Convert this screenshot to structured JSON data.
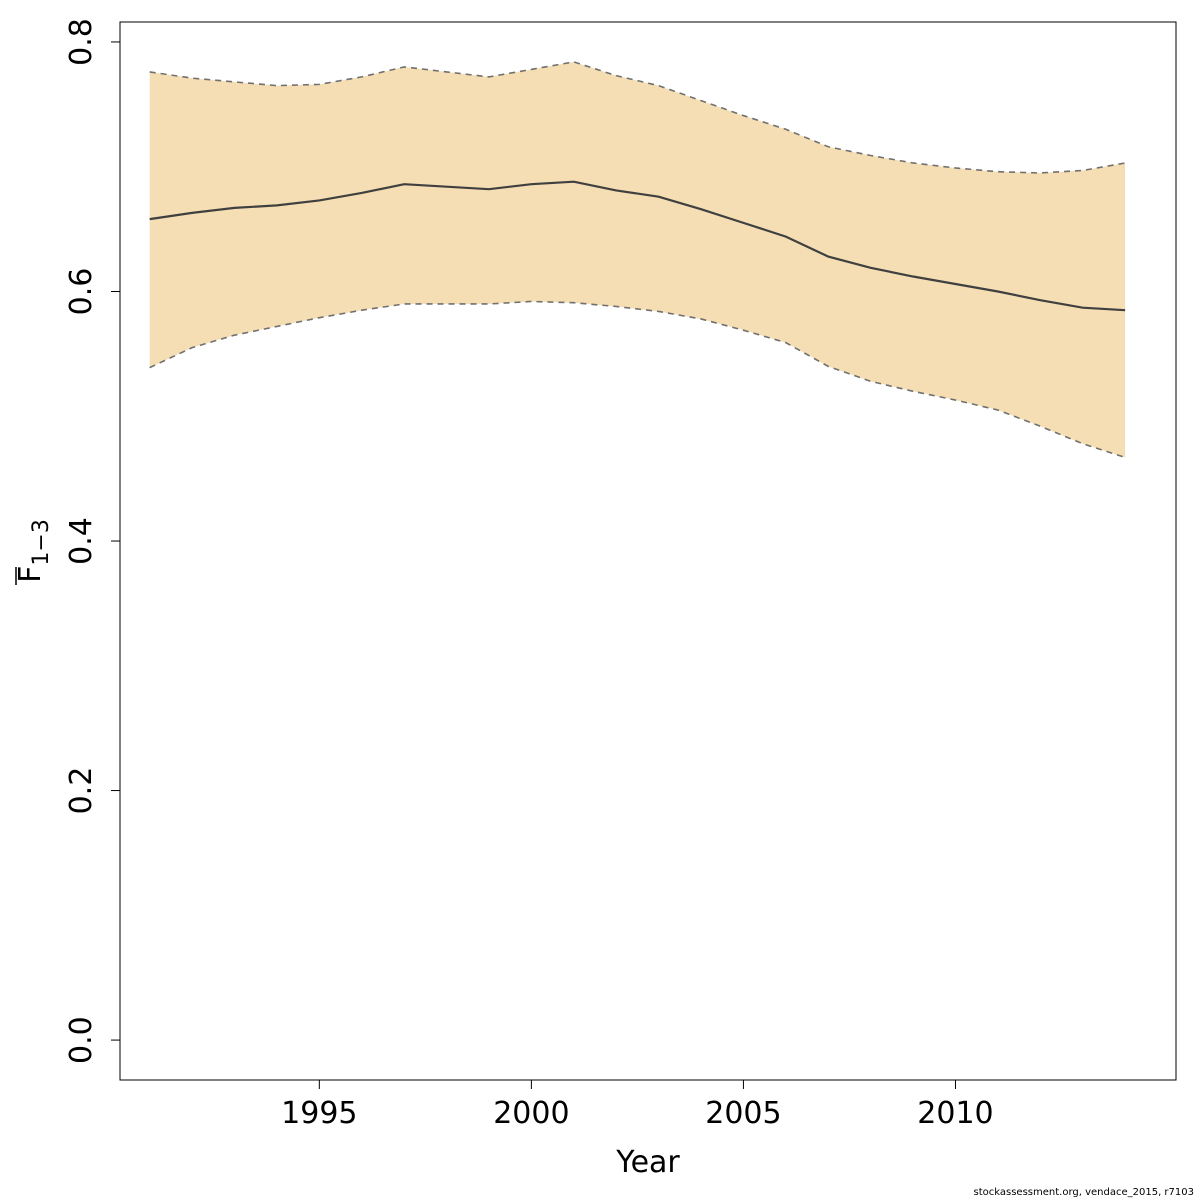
{
  "chart_data": {
    "type": "line",
    "xlabel": "Year",
    "ylabel": {
      "main": "F",
      "sub": "1−3"
    },
    "xlim": [
      1990.3,
      2015.2
    ],
    "ylim": [
      -0.032,
      0.816
    ],
    "x_ticks": [
      1995,
      2000,
      2005,
      2010
    ],
    "y_ticks": [
      "0.0",
      "0.2",
      "0.4",
      "0.6",
      "0.8"
    ],
    "x": [
      1991,
      1992,
      1993,
      1994,
      1995,
      1996,
      1997,
      1998,
      1999,
      2000,
      2001,
      2002,
      2003,
      2004,
      2005,
      2006,
      2007,
      2008,
      2009,
      2010,
      2011,
      2012,
      2013,
      2014
    ],
    "series": [
      {
        "role": "estimate",
        "values": [
          0.658,
          0.663,
          0.667,
          0.669,
          0.673,
          0.679,
          0.686,
          0.684,
          0.682,
          0.686,
          0.688,
          0.681,
          0.676,
          0.666,
          0.655,
          0.644,
          0.628,
          0.619,
          0.612,
          0.606,
          0.6,
          0.593,
          0.587,
          0.585
        ]
      },
      {
        "role": "upper",
        "values": [
          0.776,
          0.771,
          0.768,
          0.765,
          0.766,
          0.772,
          0.78,
          0.776,
          0.772,
          0.778,
          0.784,
          0.773,
          0.765,
          0.753,
          0.741,
          0.73,
          0.716,
          0.709,
          0.703,
          0.699,
          0.696,
          0.695,
          0.697,
          0.703
        ]
      },
      {
        "role": "lower",
        "values": [
          0.539,
          0.555,
          0.565,
          0.572,
          0.579,
          0.585,
          0.59,
          0.59,
          0.59,
          0.592,
          0.591,
          0.588,
          0.584,
          0.578,
          0.569,
          0.559,
          0.54,
          0.528,
          0.52,
          0.513,
          0.505,
          0.492,
          0.478,
          0.467
        ]
      }
    ],
    "colors": {
      "band": "#f5deb3",
      "line": "#404040",
      "bound": "#707070",
      "axis": "#000000"
    }
  },
  "footer": "stockassessment.org, vendace_2015, r7103"
}
